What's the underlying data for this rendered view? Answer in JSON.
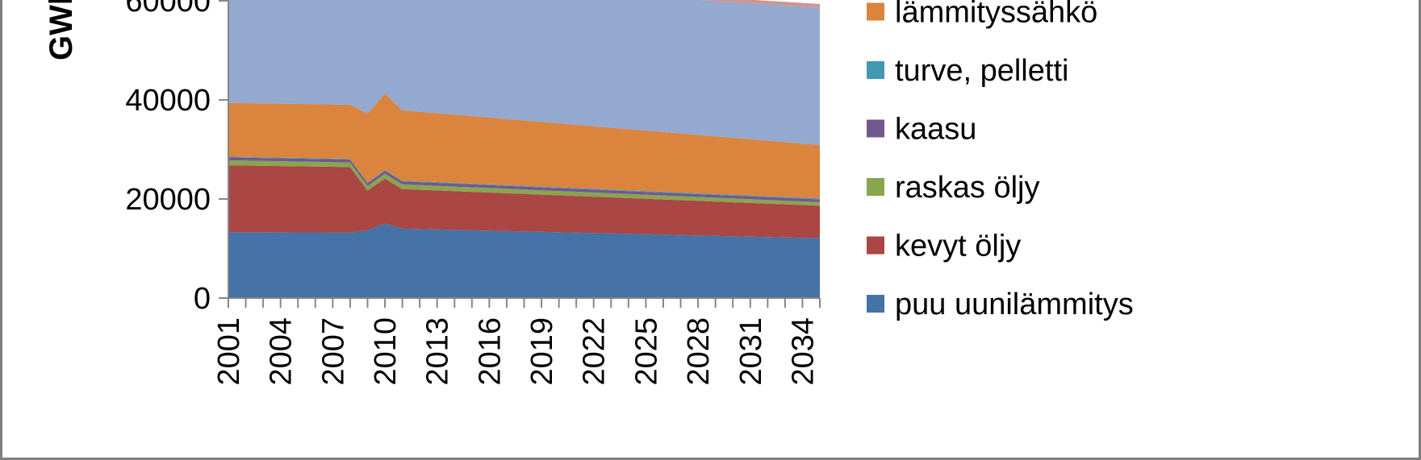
{
  "chart_data": {
    "type": "area",
    "stacked": true,
    "title": "",
    "xlabel": "",
    "ylabel": "GWh",
    "ylim": [
      0,
      66000
    ],
    "yticks": [
      0,
      20000,
      40000,
      60000
    ],
    "grid": false,
    "legend_position": "right",
    "x": [
      2001,
      2002,
      2003,
      2004,
      2005,
      2006,
      2007,
      2008,
      2009,
      2010,
      2011,
      2012,
      2013,
      2014,
      2015,
      2016,
      2017,
      2018,
      2019,
      2020,
      2021,
      2022,
      2023,
      2024,
      2025,
      2026,
      2027,
      2028,
      2029,
      2030,
      2031,
      2032,
      2033,
      2034,
      2035
    ],
    "x_tick_labels": [
      "2001",
      "2004",
      "2007",
      "2010",
      "2013",
      "2016",
      "2019",
      "2022",
      "2025",
      "2028",
      "2031",
      "2034"
    ],
    "series": [
      {
        "name": "puu uunilämmitys",
        "color": "#4572a7",
        "values": [
          13300,
          13290,
          13280,
          13270,
          13260,
          13250,
          13240,
          13230,
          13700,
          15100,
          14000,
          13920,
          13840,
          13760,
          13680,
          13600,
          13520,
          13440,
          13360,
          13280,
          13200,
          13120,
          13040,
          12960,
          12880,
          12800,
          12720,
          12640,
          12560,
          12480,
          12400,
          12320,
          12240,
          12160,
          12080
        ]
      },
      {
        "name": "kevyt öljy",
        "color": "#aa4643",
        "values": [
          13500,
          13460,
          13420,
          13380,
          13340,
          13300,
          13260,
          13200,
          8000,
          9000,
          8000,
          7940,
          7880,
          7820,
          7760,
          7700,
          7640,
          7580,
          7520,
          7460,
          7400,
          7340,
          7280,
          7220,
          7160,
          7100,
          7040,
          6980,
          6920,
          6860,
          6800,
          6740,
          6680,
          6620,
          6560
        ]
      },
      {
        "name": "raskas öljy",
        "color": "#89a54e",
        "values": [
          1000,
          990,
          980,
          970,
          960,
          950,
          940,
          930,
          900,
          1000,
          960,
          950,
          940,
          930,
          920,
          910,
          900,
          890,
          880,
          870,
          860,
          850,
          840,
          830,
          820,
          810,
          800,
          790,
          780,
          770,
          760,
          750,
          740,
          730,
          720
        ]
      },
      {
        "name": "kaasu",
        "color": "#71588f",
        "values": [
          600,
          598,
          596,
          594,
          592,
          590,
          588,
          586,
          580,
          600,
          600,
          598,
          596,
          594,
          592,
          590,
          588,
          586,
          584,
          582,
          580,
          578,
          576,
          574,
          572,
          570,
          568,
          566,
          564,
          562,
          560,
          558,
          556,
          554,
          552
        ]
      },
      {
        "name": "turve, pelletti",
        "color": "#4198af",
        "values": [
          150,
          150,
          150,
          150,
          150,
          150,
          150,
          150,
          150,
          150,
          150,
          152,
          154,
          156,
          158,
          160,
          162,
          164,
          166,
          168,
          170,
          172,
          174,
          176,
          178,
          180,
          182,
          184,
          186,
          188,
          190,
          192,
          194,
          196,
          198
        ]
      },
      {
        "name": "lämmityssähkö",
        "color": "#db843d",
        "values": [
          10850,
          10860,
          10870,
          10880,
          10890,
          10900,
          10910,
          10920,
          13920,
          15400,
          14190,
          14048,
          13906,
          13764,
          13622,
          13480,
          13338,
          13196,
          13054,
          12912,
          12770,
          12628,
          12486,
          12344,
          12202,
          12060,
          11918,
          11776,
          11634,
          11492,
          11350,
          11208,
          11066,
          10924,
          10782
        ]
      },
      {
        "name": "",
        "color": "#93a9cf",
        "values": [
          24600,
          24652,
          24704,
          24756,
          24808,
          24860,
          24912,
          24984,
          26750,
          23750,
          26100,
          26168,
          26236,
          26304,
          26372,
          26440,
          26508,
          26576,
          26644,
          26712,
          26780,
          26848,
          26916,
          26984,
          27052,
          27120,
          27188,
          27256,
          27324,
          27392,
          27460,
          27528,
          27596,
          27664,
          27732
        ]
      },
      {
        "name": "",
        "color": "#d19392",
        "values": [
          400,
          410,
          420,
          430,
          440,
          450,
          460,
          470,
          480,
          490,
          500,
          510,
          520,
          530,
          540,
          550,
          560,
          570,
          580,
          590,
          600,
          610,
          620,
          630,
          640,
          650,
          660,
          670,
          680,
          690,
          700,
          710,
          720,
          730,
          740
        ]
      }
    ]
  }
}
